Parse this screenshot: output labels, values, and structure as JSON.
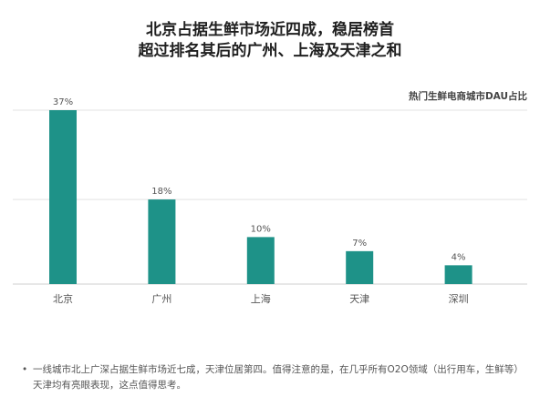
{
  "header": {
    "title_line1": "北京占据生鲜市场近四成，稳居榜首",
    "title_line2": "超过排名其后的广州、上海及天津之和",
    "subtitle": "热门生鲜电商城市DAU占比"
  },
  "chart_data": {
    "type": "bar",
    "title": "北京占据生鲜市场近四成，稳居榜首 超过排名其后的广州、上海及天津之和",
    "subtitle": "热门生鲜电商城市DAU占比",
    "categories": [
      "北京",
      "广州",
      "上海",
      "天津",
      "深圳"
    ],
    "values": [
      37,
      18,
      10,
      7,
      4
    ],
    "value_labels": [
      "37%",
      "18%",
      "10%",
      "7%",
      "4%"
    ],
    "unit": "%",
    "ylim": [
      0,
      37
    ],
    "gridlines": [
      0,
      18,
      37
    ],
    "grid": true,
    "bar_color": "#1e9288",
    "legend": "none"
  },
  "note": {
    "bullet": "•",
    "text": "一线城市北上广深占据生鲜市场近七成，天津位居第四。值得注意的是，在几乎所有O2O领域（出行用车，生鲜等）天津均有亮眼表现，这点值得思考。"
  }
}
